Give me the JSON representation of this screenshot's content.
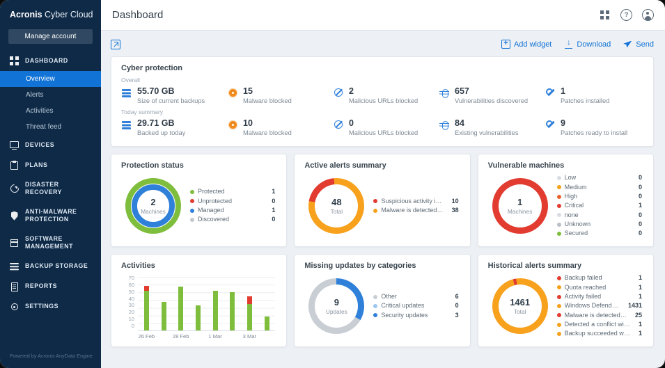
{
  "app": {
    "brand_bold": "Acronis",
    "brand_rest": " Cyber Cloud",
    "powered_by": "Powered by Acronis AnyData Engine"
  },
  "colors": {
    "accent_blue": "#1173d6",
    "navy": "#0e2a47",
    "green": "#7fbe3c",
    "red": "#e23b30",
    "orange": "#f7a11c",
    "gray": "#c9ced4"
  },
  "sidebar": {
    "manage_account": "Manage account",
    "items": [
      {
        "id": "dashboard",
        "icon": "grid-icon",
        "label": "DASHBOARD",
        "children": [
          {
            "label": "Overview",
            "active": true
          },
          {
            "label": "Alerts"
          },
          {
            "label": "Activities"
          },
          {
            "label": "Threat feed"
          }
        ]
      },
      {
        "id": "devices",
        "icon": "monitor-icon",
        "label": "DEVICES"
      },
      {
        "id": "plans",
        "icon": "clipboard-icon",
        "label": "PLANS"
      },
      {
        "id": "disaster-recovery",
        "icon": "recovery-icon",
        "label": "DISASTER RECOVERY"
      },
      {
        "id": "anti-malware-protection",
        "icon": "shield-icon",
        "label": "ANTI-MALWARE PROTECTION"
      },
      {
        "id": "software-management",
        "icon": "package-icon",
        "label": "SOFTWARE MANAGEMENT"
      },
      {
        "id": "backup-storage",
        "icon": "storage-icon",
        "label": "BACKUP STORAGE"
      },
      {
        "id": "reports",
        "icon": "report-icon",
        "label": "REPORTS"
      },
      {
        "id": "settings",
        "icon": "gear-icon",
        "label": "SETTINGS"
      }
    ]
  },
  "header": {
    "title": "Dashboard"
  },
  "toolbar": {
    "add_widget": "Add widget",
    "download": "Download",
    "send": "Send"
  },
  "cyber_protection": {
    "title": "Cyber protection",
    "rows": [
      {
        "label": "Overall",
        "stats": [
          {
            "icon": "backup-icon",
            "value": "55.70 GB",
            "label": "Size of current backups"
          },
          {
            "icon": "malware-icon",
            "value": "15",
            "label": "Malware blocked"
          },
          {
            "icon": "url-icon",
            "value": "2",
            "label": "Malicious URLs blocked"
          },
          {
            "icon": "vuln-icon",
            "value": "657",
            "label": "Vulnerabilities discovered"
          },
          {
            "icon": "patch-icon",
            "value": "1",
            "label": "Patches installed"
          }
        ]
      },
      {
        "label": "Today summary",
        "stats": [
          {
            "icon": "backup-icon",
            "value": "29.71 GB",
            "label": "Backed up today"
          },
          {
            "icon": "malware-icon",
            "value": "10",
            "label": "Malware blocked"
          },
          {
            "icon": "url-icon",
            "value": "0",
            "label": "Malicious URLs blocked"
          },
          {
            "icon": "vuln-icon",
            "value": "84",
            "label": "Existing vulnerabilities"
          },
          {
            "icon": "patch-icon",
            "value": "9",
            "label": "Patches ready to install"
          }
        ]
      }
    ]
  },
  "widgets": {
    "protection_status": {
      "title": "Protection status",
      "type": "rings",
      "center_value": "2",
      "center_label": "Machines",
      "rings": [
        "#7fbe3c",
        "#2f80d9"
      ],
      "legend": [
        {
          "color": "#7fbe3c",
          "label": "Protected",
          "value": "1"
        },
        {
          "color": "#e23b30",
          "label": "Unprotected",
          "value": "0"
        },
        {
          "color": "#2f80d9",
          "label": "Managed",
          "value": "1"
        },
        {
          "color": "#c3c9cf",
          "label": "Discovered",
          "value": "0"
        }
      ]
    },
    "active_alerts": {
      "title": "Active alerts summary",
      "type": "donut",
      "center_value": "48",
      "center_label": "Total",
      "rotate": -80,
      "segments": [
        {
          "color": "#e23b30",
          "value": 10
        },
        {
          "color": "#f7a11c",
          "value": 38
        }
      ],
      "legend": [
        {
          "color": "#e23b30",
          "label": "Suspicious activity is detec...",
          "value": "10"
        },
        {
          "color": "#f7a11c",
          "label": "Malware is detected in a b...",
          "value": "38"
        }
      ]
    },
    "vulnerable_machines": {
      "title": "Vulnerable machines",
      "type": "donut",
      "center_value": "1",
      "center_label": "Machines",
      "rotate": 0,
      "segments": [
        {
          "color": "#e23b30",
          "value": 1
        }
      ],
      "legend": [
        {
          "color": "#d9dde1",
          "label": "Low",
          "value": "0"
        },
        {
          "color": "#f7a11c",
          "label": "Medium",
          "value": "0"
        },
        {
          "color": "#e8642c",
          "label": "High",
          "value": "0"
        },
        {
          "color": "#e23b30",
          "label": "Critical",
          "value": "1"
        },
        {
          "color": "#d9dde1",
          "label": "none",
          "value": "0"
        },
        {
          "color": "#b9bfc6",
          "label": "Unknown",
          "value": "0"
        },
        {
          "color": "#7fbe3c",
          "label": "Secured",
          "value": "0"
        }
      ]
    },
    "activities": {
      "title": "Activities",
      "type": "bars",
      "y_ticks": [
        70,
        60,
        50,
        40,
        30,
        20,
        10,
        0
      ],
      "y_max": 70,
      "green": "#7fbe3c",
      "red": "#e23b30",
      "bars": [
        {
          "green": 52,
          "red": 6,
          "x_label": "26 Feb"
        },
        {
          "green": 37,
          "red": 0,
          "x_label": ""
        },
        {
          "green": 57,
          "red": 0,
          "x_label": "28 Feb"
        },
        {
          "green": 33,
          "red": 0,
          "x_label": ""
        },
        {
          "green": 52,
          "red": 0,
          "x_label": "1 Mar"
        },
        {
          "green": 50,
          "red": 0,
          "x_label": ""
        },
        {
          "green": 35,
          "red": 10,
          "x_label": "3 Mar"
        },
        {
          "green": 18,
          "red": 0,
          "x_label": ""
        }
      ]
    },
    "missing_updates": {
      "title": "Missing updates by categories",
      "type": "donut",
      "center_value": "9",
      "center_label": "Updates",
      "rotate": 0,
      "segments": [
        {
          "color": "#2f80d9",
          "value": 3
        },
        {
          "color": "#c9ced4",
          "value": 6
        }
      ],
      "legend": [
        {
          "color": "#c9ced4",
          "label": "Other",
          "value": "6"
        },
        {
          "color": "#9dc6ef",
          "label": "Critical updates",
          "value": "0"
        },
        {
          "color": "#2f80d9",
          "label": "Security updates",
          "value": "3"
        }
      ]
    },
    "historical_alerts": {
      "title": "Historical alerts summary",
      "type": "donut",
      "center_value": "1461",
      "center_label": "Total",
      "rotate": -15,
      "segments": [
        {
          "color": "#e23b30",
          "value": 27
        },
        {
          "color": "#f7a11c",
          "value": 1434
        }
      ],
      "legend": [
        {
          "color": "#e23b30",
          "label": "Backup failed",
          "value": "1"
        },
        {
          "color": "#f7a11c",
          "label": "Quota reached",
          "value": "1"
        },
        {
          "color": "#e23b30",
          "label": "Activity failed",
          "value": "1"
        },
        {
          "color": "#f7a11c",
          "label": "Windows Defender mod...",
          "value": "1431"
        },
        {
          "color": "#e23b30",
          "label": "Malware is detected in a b...",
          "value": "25"
        },
        {
          "color": "#f7a11c",
          "label": "Detected a conflict with a se...",
          "value": "1"
        },
        {
          "color": "#f7a11c",
          "label": "Backup succeeded with war...",
          "value": "1"
        }
      ]
    }
  }
}
